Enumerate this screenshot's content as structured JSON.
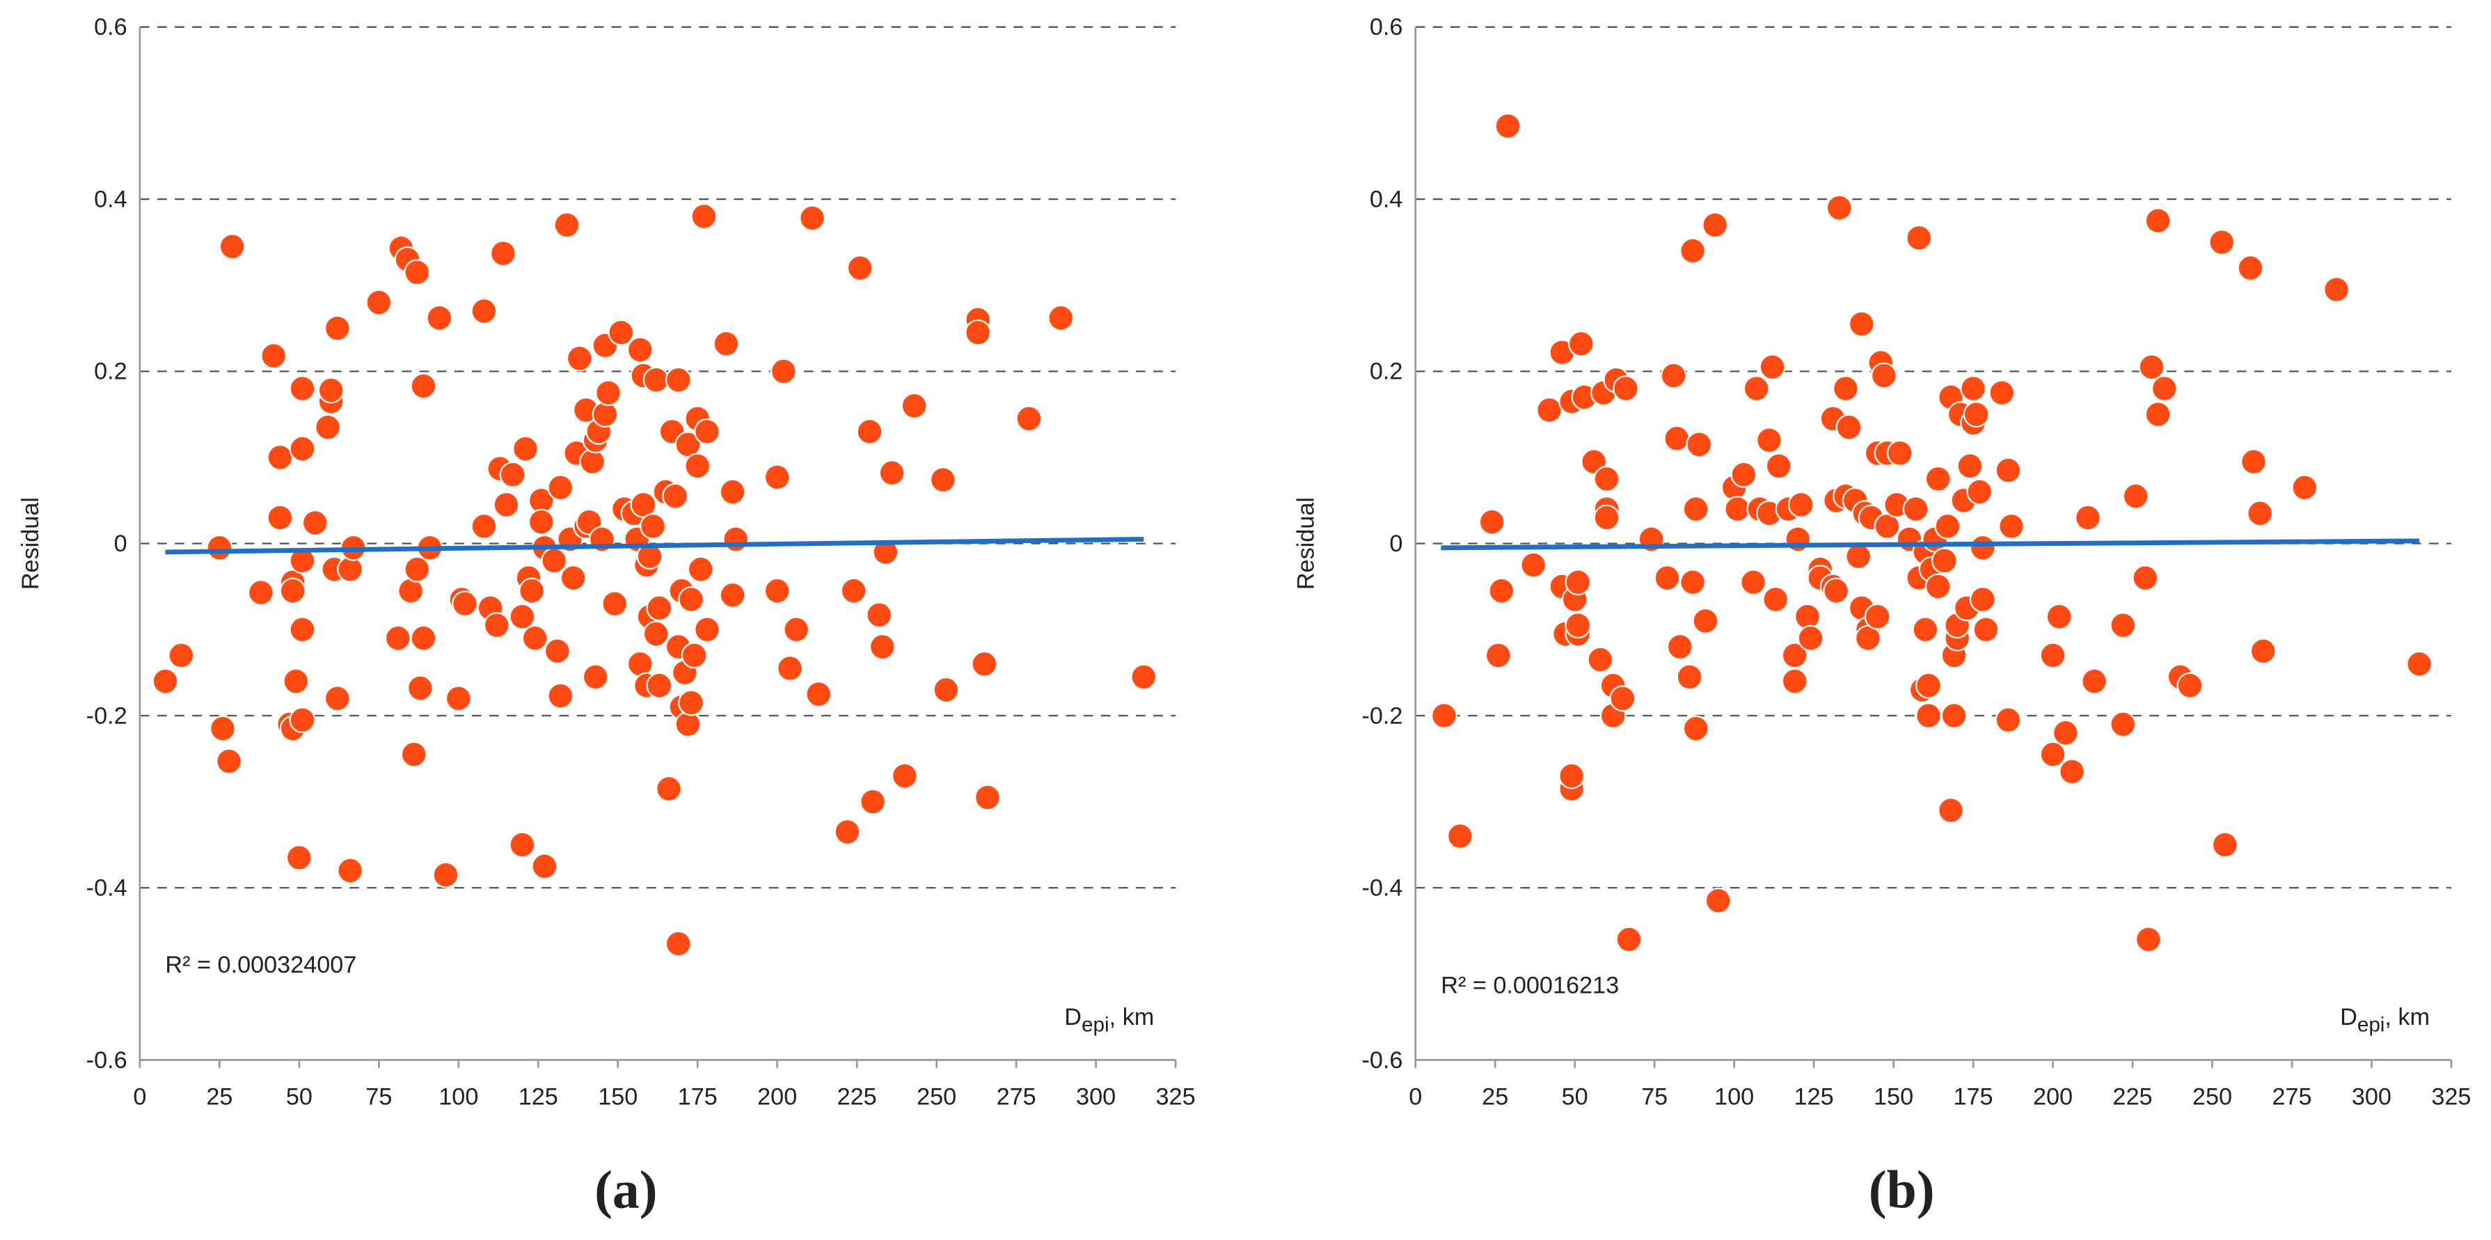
{
  "chart_data": [
    {
      "type": "scatter",
      "caption": "(a)",
      "y_label": "Residual",
      "x_label": [
        "D",
        "epi",
        ", km"
      ],
      "annotation": "R² = 0.000324007",
      "color": "#ff4b12",
      "xlim": [
        0,
        325
      ],
      "xticks": [
        0,
        25,
        50,
        75,
        100,
        125,
        150,
        175,
        200,
        225,
        250,
        275,
        300,
        325
      ],
      "ylim": [
        -0.6,
        0.6
      ],
      "yticks": [
        -0.6,
        -0.4,
        -0.2,
        0,
        0.2,
        0.4,
        0.6
      ],
      "grid": true,
      "x": [
        8,
        13,
        25,
        26,
        28,
        29,
        38,
        42,
        44,
        44,
        47,
        48,
        48,
        48,
        49,
        50,
        51,
        51,
        51,
        51,
        51,
        55,
        59,
        60,
        60,
        61,
        62,
        62,
        66,
        66,
        67,
        75,
        81,
        82,
        84,
        85,
        86,
        87,
        87,
        88,
        89,
        89,
        91,
        94,
        96,
        100,
        101,
        102,
        108,
        108,
        110,
        112,
        113,
        114,
        115,
        117,
        120,
        120,
        121,
        122,
        123,
        124,
        126,
        126,
        127,
        127,
        130,
        131,
        132,
        132,
        134,
        135,
        136,
        137,
        138,
        140,
        140,
        141,
        142,
        143,
        143,
        144,
        145,
        146,
        146,
        147,
        149,
        151,
        152,
        155,
        156,
        157,
        157,
        158,
        158,
        159,
        159,
        160,
        160,
        161,
        162,
        162,
        163,
        163,
        165,
        166,
        167,
        168,
        169,
        169,
        169,
        170,
        170,
        171,
        172,
        172,
        173,
        173,
        174,
        175,
        175,
        176,
        177,
        178,
        178,
        184,
        186,
        186,
        187,
        200,
        200,
        202,
        204,
        206,
        211,
        213,
        222,
        224,
        226,
        229,
        230,
        232,
        233,
        234,
        236,
        240,
        243,
        252,
        253,
        263,
        263,
        265,
        266,
        279,
        289,
        315
      ],
      "values": [
        -0.16,
        -0.13,
        -0.005,
        -0.215,
        -0.253,
        0.345,
        -0.057,
        0.218,
        0.1,
        0.03,
        -0.21,
        -0.215,
        -0.045,
        -0.055,
        -0.16,
        -0.365,
        0.11,
        -0.205,
        -0.1,
        -0.02,
        0.18,
        0.024,
        0.135,
        0.165,
        0.178,
        -0.03,
        -0.18,
        0.25,
        -0.38,
        -0.03,
        -0.005,
        0.28,
        -0.11,
        0.343,
        0.33,
        -0.055,
        -0.245,
        -0.03,
        0.315,
        -0.168,
        0.183,
        -0.11,
        -0.005,
        0.262,
        -0.385,
        -0.18,
        -0.065,
        -0.07,
        0.27,
        0.02,
        -0.075,
        -0.095,
        0.087,
        0.337,
        0.045,
        0.08,
        -0.085,
        -0.35,
        0.11,
        -0.04,
        -0.055,
        -0.11,
        0.05,
        0.025,
        -0.375,
        -0.005,
        -0.02,
        -0.125,
        0.065,
        -0.177,
        0.37,
        0.005,
        -0.04,
        0.105,
        0.215,
        0.155,
        0.02,
        0.025,
        0.095,
        -0.155,
        0.12,
        0.13,
        0.005,
        0.23,
        0.15,
        0.175,
        -0.07,
        0.245,
        0.04,
        0.035,
        0.005,
        0.225,
        -0.14,
        0.045,
        0.195,
        -0.165,
        -0.025,
        -0.085,
        -0.015,
        0.02,
        -0.105,
        0.19,
        -0.075,
        -0.165,
        0.06,
        -0.285,
        0.13,
        0.055,
        0.19,
        -0.12,
        -0.465,
        -0.055,
        -0.19,
        -0.15,
        0.115,
        -0.21,
        -0.185,
        -0.065,
        -0.13,
        0.145,
        0.09,
        -0.03,
        0.38,
        0.13,
        -0.1,
        0.232,
        -0.06,
        0.06,
        0.005,
        0.077,
        -0.055,
        0.2,
        -0.145,
        -0.1,
        0.378,
        -0.175,
        -0.335,
        -0.055,
        0.32,
        0.13,
        -0.3,
        -0.083,
        -0.12,
        -0.01,
        0.082,
        -0.27,
        0.16,
        0.074,
        -0.17,
        0.26,
        0.245,
        -0.14,
        -0.295,
        0.145,
        0.262,
        -0.155
      ],
      "trendline": {
        "x": [
          8,
          315
        ],
        "values": [
          -0.01,
          0.005
        ],
        "color": "#1f6fc6"
      }
    },
    {
      "type": "scatter",
      "caption": "(b)",
      "y_label": "Residual",
      "x_label": [
        "D",
        "epi",
        ", km"
      ],
      "annotation": "R² = 0.00016213",
      "color": "#ff4b12",
      "xlim": [
        0,
        325
      ],
      "xticks": [
        0,
        25,
        50,
        75,
        100,
        125,
        150,
        175,
        200,
        225,
        250,
        275,
        300,
        325
      ],
      "ylim": [
        -0.6,
        0.6
      ],
      "yticks": [
        -0.6,
        -0.4,
        -0.2,
        0,
        0.2,
        0.4,
        0.6
      ],
      "grid": true,
      "x": [
        9,
        14,
        24,
        26,
        27,
        29,
        37,
        42,
        46,
        46,
        47,
        49,
        49,
        49,
        50,
        51,
        51,
        51,
        52,
        53,
        56,
        58,
        59,
        60,
        60,
        60,
        62,
        62,
        63,
        65,
        66,
        67,
        74,
        79,
        81,
        82,
        83,
        86,
        87,
        87,
        88,
        88,
        89,
        91,
        94,
        95,
        100,
        101,
        103,
        106,
        107,
        108,
        111,
        111,
        112,
        113,
        114,
        117,
        119,
        119,
        120,
        121,
        123,
        124,
        127,
        127,
        131,
        131,
        132,
        132,
        133,
        135,
        135,
        136,
        138,
        139,
        140,
        140,
        141,
        142,
        142,
        143,
        145,
        145,
        146,
        147,
        148,
        148,
        151,
        152,
        155,
        157,
        158,
        158,
        159,
        160,
        160,
        161,
        161,
        162,
        163,
        164,
        164,
        166,
        167,
        168,
        168,
        169,
        169,
        170,
        170,
        171,
        172,
        173,
        174,
        175,
        175,
        176,
        177,
        178,
        178,
        179,
        184,
        186,
        186,
        187,
        200,
        200,
        202,
        204,
        206,
        211,
        213,
        222,
        222,
        226,
        229,
        230,
        231,
        233,
        233,
        235,
        240,
        243,
        253,
        254,
        262,
        263,
        265,
        266,
        279,
        289,
        315
      ],
      "values": [
        -0.2,
        -0.34,
        0.025,
        -0.13,
        -0.055,
        0.485,
        -0.025,
        0.155,
        0.222,
        -0.05,
        -0.105,
        -0.285,
        -0.27,
        0.165,
        -0.065,
        -0.105,
        -0.095,
        -0.045,
        0.232,
        0.17,
        0.095,
        -0.135,
        0.175,
        0.075,
        0.04,
        0.03,
        -0.2,
        -0.165,
        0.19,
        -0.18,
        0.18,
        -0.46,
        0.005,
        -0.04,
        0.195,
        0.122,
        -0.12,
        -0.155,
        -0.045,
        0.34,
        -0.215,
        0.04,
        0.115,
        -0.09,
        0.37,
        -0.415,
        0.065,
        0.04,
        0.08,
        -0.045,
        0.18,
        0.04,
        0.12,
        0.035,
        0.205,
        -0.065,
        0.09,
        0.04,
        -0.13,
        -0.16,
        0.005,
        0.045,
        -0.085,
        -0.11,
        -0.03,
        -0.04,
        0.145,
        -0.05,
        -0.055,
        0.05,
        0.39,
        0.18,
        0.055,
        0.135,
        0.05,
        -0.015,
        0.255,
        -0.075,
        0.035,
        -0.1,
        -0.11,
        0.03,
        0.105,
        -0.085,
        0.21,
        0.195,
        0.02,
        0.105,
        0.045,
        0.105,
        0.005,
        0.04,
        0.355,
        -0.04,
        -0.17,
        -0.1,
        -0.01,
        -0.2,
        -0.165,
        -0.03,
        0.005,
        0.075,
        -0.05,
        -0.02,
        0.02,
        -0.31,
        0.17,
        -0.2,
        -0.13,
        -0.11,
        -0.095,
        0.15,
        0.05,
        -0.075,
        0.09,
        0.18,
        0.14,
        0.15,
        0.06,
        -0.005,
        -0.065,
        -0.1,
        0.175,
        0.085,
        -0.205,
        0.02,
        -0.13,
        -0.245,
        -0.085,
        -0.22,
        -0.265,
        0.03,
        -0.16,
        -0.21,
        -0.095,
        0.055,
        -0.04,
        -0.46,
        0.205,
        0.375,
        0.15,
        0.18,
        -0.155,
        -0.165,
        0.35,
        -0.35,
        0.32,
        0.095,
        0.035,
        -0.125,
        0.065,
        0.295,
        -0.14
      ],
      "trendline": {
        "x": [
          8,
          315
        ],
        "values": [
          -0.005,
          0.003
        ],
        "color": "#1f6fc6"
      }
    }
  ]
}
